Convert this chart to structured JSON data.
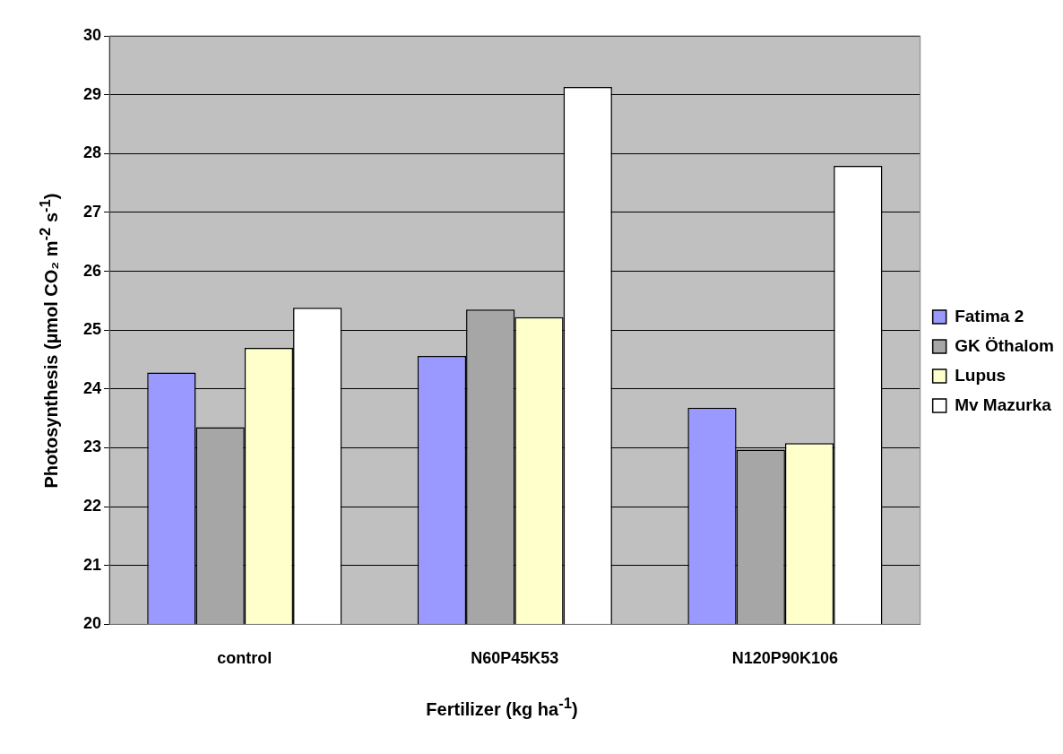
{
  "chart_data": {
    "type": "bar",
    "xlabel": "Fertilizer (kg ha$^{-1}$)",
    "ylabel": "Photosynthesis (µmol CO₂ m$^{-2}$ s$^{-1}$)",
    "categories": [
      "control",
      "N60P45K53",
      "N120P90K106"
    ],
    "series": [
      {
        "name": "Fatima 2",
        "color": "#9999ff",
        "values": [
          24.28,
          24.56,
          23.68
        ]
      },
      {
        "name": "GK Öthalom",
        "color": "#a6a6a6",
        "values": [
          23.35,
          25.35,
          22.97
        ]
      },
      {
        "name": "Lupus",
        "color": "#ffffcc",
        "values": [
          24.7,
          25.22,
          23.08
        ]
      },
      {
        "name": "Mv Mazurka",
        "color": "#ffffff",
        "values": [
          25.38,
          29.13,
          27.79
        ]
      }
    ],
    "ylim": [
      20,
      30
    ],
    "yticks": [
      20,
      21,
      22,
      23,
      24,
      25,
      26,
      27,
      28,
      29,
      30
    ],
    "grid": "y",
    "legend": "right"
  }
}
